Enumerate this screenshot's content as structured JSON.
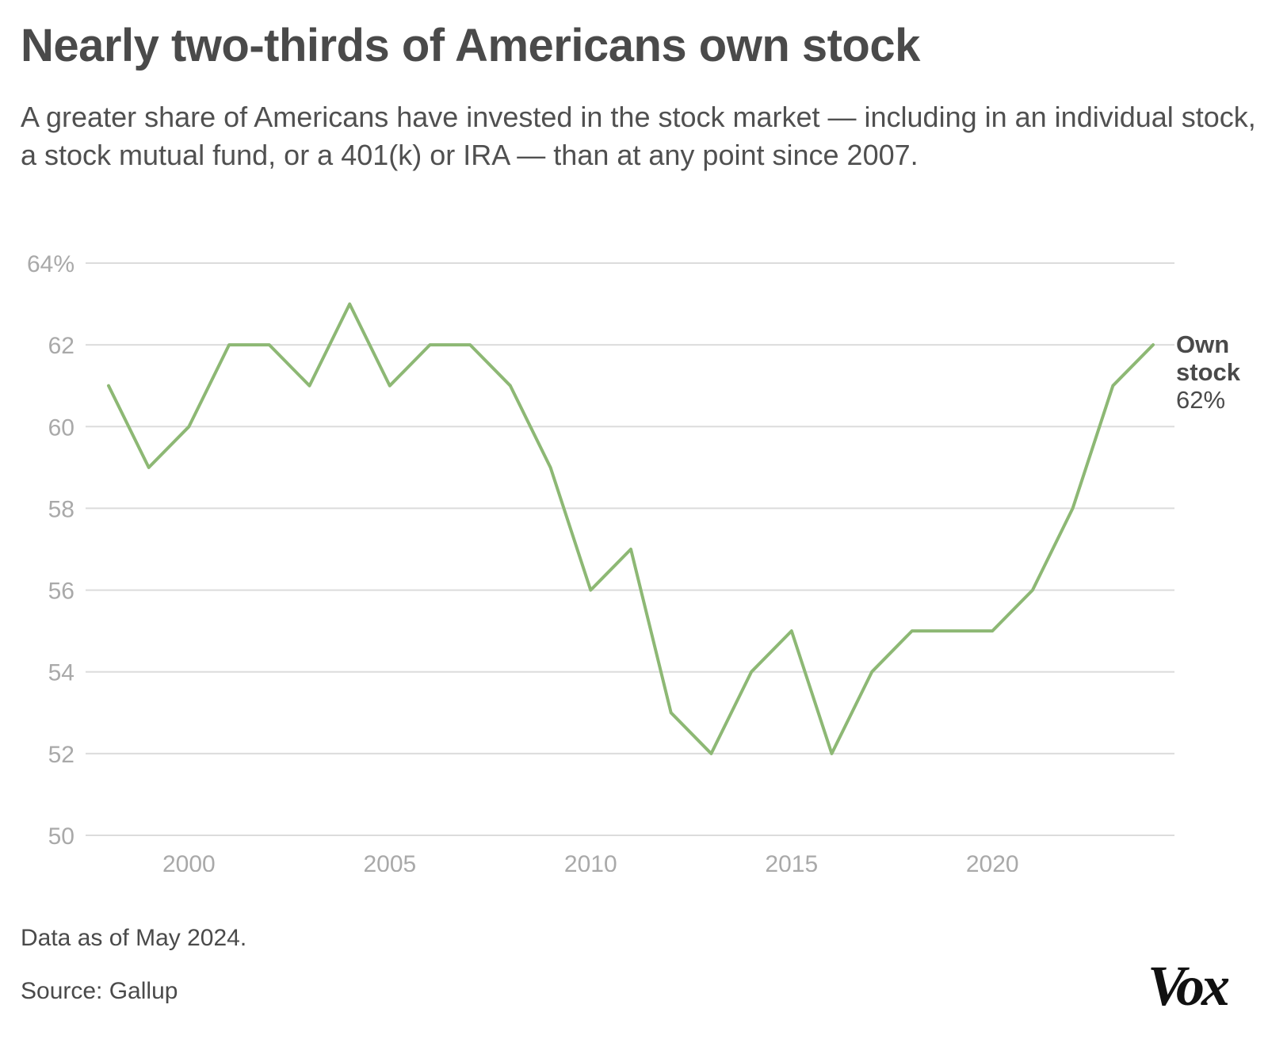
{
  "header": {
    "title": "Nearly two-thirds of Americans own stock",
    "subtitle": "A greater share of Americans have invested in the stock market — including in an individual stock, a stock mutual fund, or a 401(k) or IRA — than at any point since 2007."
  },
  "footer": {
    "note": "Data as of May 2024.",
    "source": "Source: Gallup",
    "logo": "Vox"
  },
  "chart_data": {
    "type": "line",
    "title": "Nearly two-thirds of Americans own stock",
    "xlabel": "",
    "ylabel": "",
    "xlim": [
      1997.5,
      2024.5
    ],
    "ylim": [
      50,
      64
    ],
    "y_ticks": [
      50,
      52,
      54,
      56,
      58,
      60,
      62,
      64
    ],
    "y_tick_labels": [
      "50",
      "52",
      "54",
      "56",
      "58",
      "60",
      "62",
      "64%"
    ],
    "x_ticks": [
      2000,
      2005,
      2010,
      2015,
      2020
    ],
    "x_tick_labels": [
      "2000",
      "2005",
      "2010",
      "2015",
      "2020"
    ],
    "grid": true,
    "x": [
      1998,
      1999,
      2000,
      2001,
      2002,
      2003,
      2004,
      2005,
      2006,
      2007,
      2008,
      2009,
      2010,
      2011,
      2012,
      2013,
      2014,
      2015,
      2016,
      2017,
      2018,
      2019,
      2020,
      2021,
      2022,
      2023,
      2024
    ],
    "series": [
      {
        "name": "Own stock",
        "end_label_name": [
          "Own",
          "stock"
        ],
        "end_label_value": "62%",
        "color": "#8db874",
        "values": [
          61,
          59,
          60,
          62,
          62,
          61,
          63,
          61,
          62,
          62,
          61,
          59,
          56,
          57,
          53,
          52,
          54,
          55,
          52,
          54,
          55,
          55,
          55,
          56,
          58,
          61,
          62
        ]
      }
    ]
  }
}
